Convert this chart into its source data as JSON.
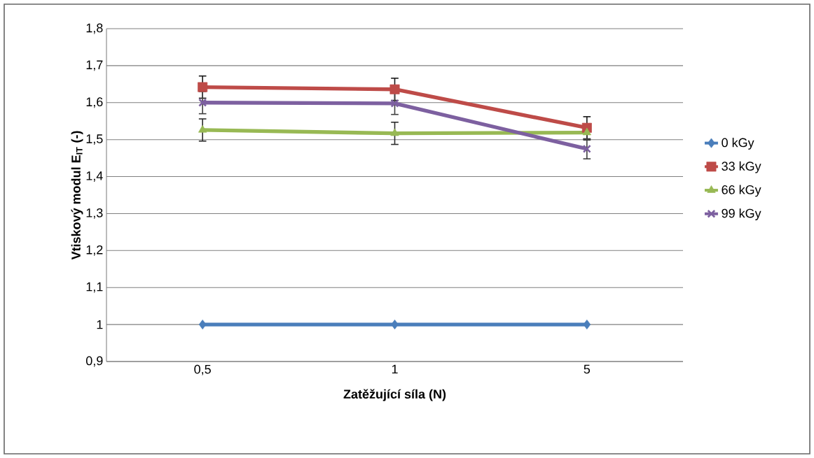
{
  "chart_data": {
    "type": "line",
    "xlabel": "Zatěžující síla (N)",
    "ylabel": "Vtiskový modul E$_{IT}$ (-)",
    "categories": [
      "0,5",
      "1",
      "5"
    ],
    "series": [
      {
        "name": "0 kGy",
        "color": "#4a7ebb",
        "marker": "diamond",
        "values": [
          1,
          1,
          1
        ]
      },
      {
        "name": "33 kGy",
        "color": "#be4b48",
        "marker": "square",
        "values": [
          1.642,
          1.636,
          1.532
        ],
        "errors": [
          0.03,
          0.03,
          0.03
        ]
      },
      {
        "name": "66 kGy",
        "color": "#98b954",
        "marker": "triangle",
        "values": [
          1.526,
          1.517,
          1.519
        ],
        "errors": [
          0.03,
          0.03,
          0.02
        ]
      },
      {
        "name": "99 kGy",
        "color": "#7d60a0",
        "marker": "cross",
        "values": [
          1.6,
          1.598,
          1.475
        ],
        "errors": [
          0.03,
          0.03,
          0.027
        ]
      }
    ],
    "ylim": [
      0.9,
      1.8
    ],
    "yticks": [
      {
        "value": 0.9,
        "label": "0,9"
      },
      1,
      {
        "value": 1.1,
        "label": "1,1"
      },
      {
        "value": 1.2,
        "label": "1,2"
      },
      {
        "value": 1.3,
        "label": "1,3"
      },
      {
        "value": 1.4,
        "label": "1,4"
      },
      {
        "value": 1.5,
        "label": "1,5"
      },
      {
        "value": 1.6,
        "label": "1,6"
      },
      {
        "value": 1.7,
        "label": "1,7"
      },
      {
        "value": 1.8,
        "label": "1,8"
      }
    ],
    "grid": "y",
    "legend": "right",
    "line_style": "solid"
  }
}
